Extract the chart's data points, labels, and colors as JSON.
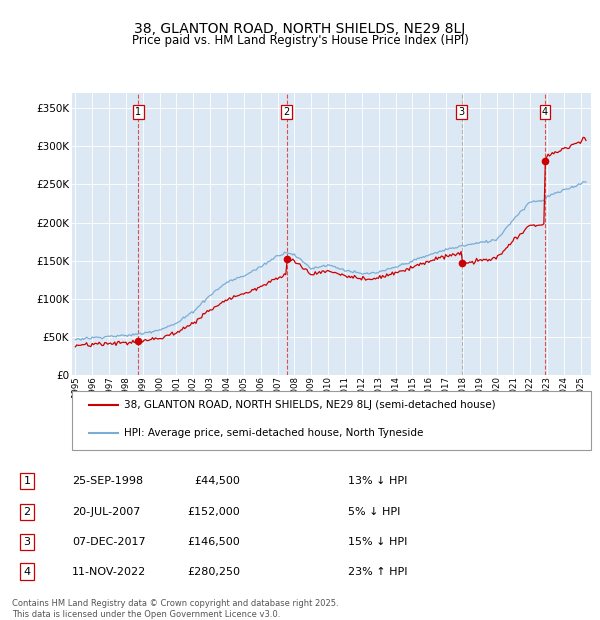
{
  "title": "38, GLANTON ROAD, NORTH SHIELDS, NE29 8LJ",
  "subtitle": "Price paid vs. HM Land Registry's House Price Index (HPI)",
  "background_color": "#dce9f5",
  "sales": [
    {
      "num": 1,
      "date": "1998-09-25",
      "time": 1998.73,
      "price": 44500,
      "pct": "13%",
      "dir": "↓",
      "vline": "red"
    },
    {
      "num": 2,
      "date": "2007-07-20",
      "time": 2007.55,
      "price": 152000,
      "pct": "5%",
      "dir": "↓",
      "vline": "red"
    },
    {
      "num": 3,
      "date": "2017-12-07",
      "time": 2017.92,
      "price": 146500,
      "pct": "15%",
      "dir": "↓",
      "vline": "gray"
    },
    {
      "num": 4,
      "date": "2022-11-11",
      "time": 2022.87,
      "price": 280250,
      "pct": "23%",
      "dir": "↑",
      "vline": "red"
    }
  ],
  "legend_line1": "38, GLANTON ROAD, NORTH SHIELDS, NE29 8LJ (semi-detached house)",
  "legend_line2": "HPI: Average price, semi-detached house, North Tyneside",
  "table_rows": [
    [
      "1",
      "25-SEP-1998",
      "£44,500",
      "13% ↓ HPI"
    ],
    [
      "2",
      "20-JUL-2007",
      "£152,000",
      "5% ↓ HPI"
    ],
    [
      "3",
      "07-DEC-2017",
      "£146,500",
      "15% ↓ HPI"
    ],
    [
      "4",
      "11-NOV-2022",
      "£280,250",
      "23% ↑ HPI"
    ]
  ],
  "footnote": "Contains HM Land Registry data © Crown copyright and database right 2025.\nThis data is licensed under the Open Government Licence v3.0.",
  "ylim": [
    0,
    370000
  ],
  "yticks": [
    0,
    50000,
    100000,
    150000,
    200000,
    250000,
    300000,
    350000
  ],
  "ytick_labels": [
    "£0",
    "£50K",
    "£100K",
    "£150K",
    "£200K",
    "£250K",
    "£300K",
    "£350K"
  ],
  "xlim_start": 1994.8,
  "xlim_end": 2025.6,
  "red_line_color": "#cc0000",
  "blue_line_color": "#7aadd4",
  "marker_box_color": "#cc0000",
  "grid_color": "#ffffff",
  "hpi_anchors_t": [
    1995.0,
    1996.0,
    1997.0,
    1998.0,
    1999.0,
    2000.0,
    2001.0,
    2002.0,
    2003.0,
    2004.0,
    2005.0,
    2006.0,
    2007.0,
    2007.6,
    2008.0,
    2009.0,
    2010.0,
    2011.0,
    2012.0,
    2013.0,
    2014.0,
    2015.0,
    2016.0,
    2017.0,
    2018.0,
    2019.0,
    2020.0,
    2021.0,
    2022.0,
    2022.9,
    2023.0,
    2024.0,
    2025.0,
    2025.4
  ],
  "hpi_anchors_v": [
    47000,
    49000,
    51000,
    52000,
    55000,
    60000,
    68000,
    84000,
    105000,
    122000,
    130000,
    142000,
    157000,
    162000,
    158000,
    140000,
    145000,
    138000,
    133000,
    135000,
    142000,
    150000,
    158000,
    165000,
    170000,
    174000,
    178000,
    205000,
    228000,
    230000,
    235000,
    243000,
    252000,
    256000
  ]
}
